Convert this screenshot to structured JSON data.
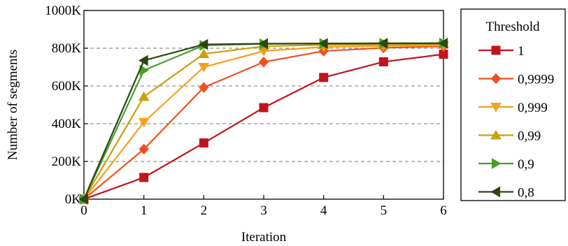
{
  "chart_data": {
    "type": "line",
    "xlabel": "Iteration",
    "ylabel": "Number of segments",
    "x": [
      0,
      1,
      2,
      3,
      4,
      5,
      6
    ],
    "xlim": [
      0,
      6
    ],
    "ylim": [
      0,
      1000000
    ],
    "x_ticks": [
      "0",
      "1",
      "2",
      "3",
      "4",
      "5",
      "6"
    ],
    "y_ticks": [
      {
        "value": 0,
        "label": "0K"
      },
      {
        "value": 200000,
        "label": "200K"
      },
      {
        "value": 400000,
        "label": "400K"
      },
      {
        "value": 600000,
        "label": "600K"
      },
      {
        "value": 800000,
        "label": "800K"
      },
      {
        "value": 1000000,
        "label": "1000K"
      }
    ],
    "grid": "horizontal dashed",
    "legend": {
      "title": "Threshold",
      "placement": "right"
    },
    "series": [
      {
        "name": "1",
        "color": "#c0141e",
        "marker": "square",
        "values": [
          0,
          115000,
          298000,
          485000,
          645000,
          728000,
          768000
        ]
      },
      {
        "name": "0,9999",
        "color": "#f0501e",
        "marker": "diamond",
        "values": [
          0,
          265000,
          592000,
          727000,
          785000,
          802000,
          810000
        ]
      },
      {
        "name": "0,999",
        "color": "#f5a01e",
        "marker": "triangle-down",
        "values": [
          0,
          408000,
          700000,
          785000,
          807000,
          812000,
          815000
        ]
      },
      {
        "name": "0,99",
        "color": "#c8a00a",
        "marker": "triangle-up",
        "values": [
          0,
          543000,
          770000,
          810000,
          818000,
          820000,
          822000
        ]
      },
      {
        "name": "0,9",
        "color": "#46a028",
        "marker": "triangle-right",
        "values": [
          0,
          683000,
          815000,
          823000,
          825000,
          826000,
          827000
        ]
      },
      {
        "name": "0,8",
        "color": "#2d4614",
        "marker": "triangle-left",
        "values": [
          0,
          735000,
          820000,
          824000,
          825000,
          826000,
          826000
        ]
      }
    ]
  }
}
